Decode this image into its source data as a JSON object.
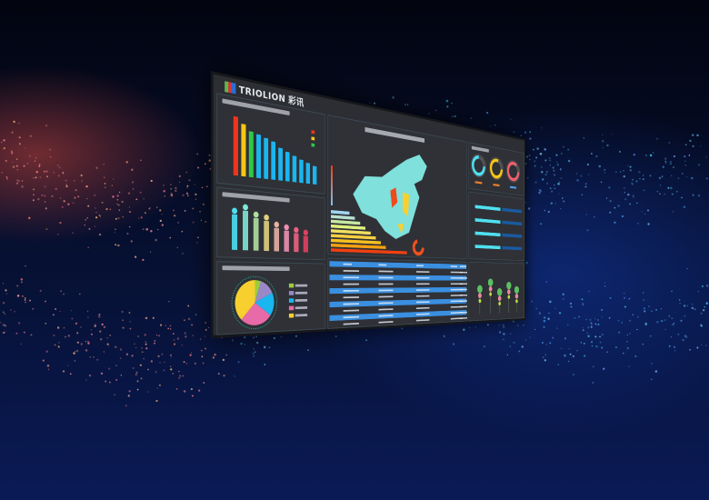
{
  "brand": {
    "name": "TRIOLION",
    "cn": "彩讯"
  },
  "colors": {
    "background": "#071238",
    "glow": "#c8463c",
    "screen": "#2c2e33",
    "accent": "#19b6f0"
  },
  "left_bar_chart": {
    "type": "bar",
    "values": [
      95,
      85,
      75,
      72,
      68,
      64,
      55,
      50,
      45,
      40,
      36,
      32
    ],
    "colors": [
      "#f0341c",
      "#f7c515",
      "#2cc84a",
      "#19b6f0"
    ]
  },
  "left_gradient_bars": {
    "type": "bar",
    "values": [
      80,
      90,
      75,
      70,
      55,
      50,
      45,
      40
    ]
  },
  "pie_chart": {
    "type": "pie",
    "values": [
      5,
      13,
      17,
      27,
      38
    ],
    "colors": [
      "#9ccc3c",
      "#9a88c8",
      "#19b6f0",
      "#e86aa8",
      "#f7d030"
    ]
  },
  "donuts": [
    {
      "value": 0.75,
      "color": "#4fe0f0"
    },
    {
      "value": 0.8,
      "color": "#f7c515"
    },
    {
      "value": 0.85,
      "color": "#f06070"
    }
  ],
  "map_colors": {
    "base": "#7fe0dc",
    "hot": "#f04a1c",
    "warm": "#f7d030"
  },
  "table": {
    "rows": 10,
    "cols": 6
  }
}
